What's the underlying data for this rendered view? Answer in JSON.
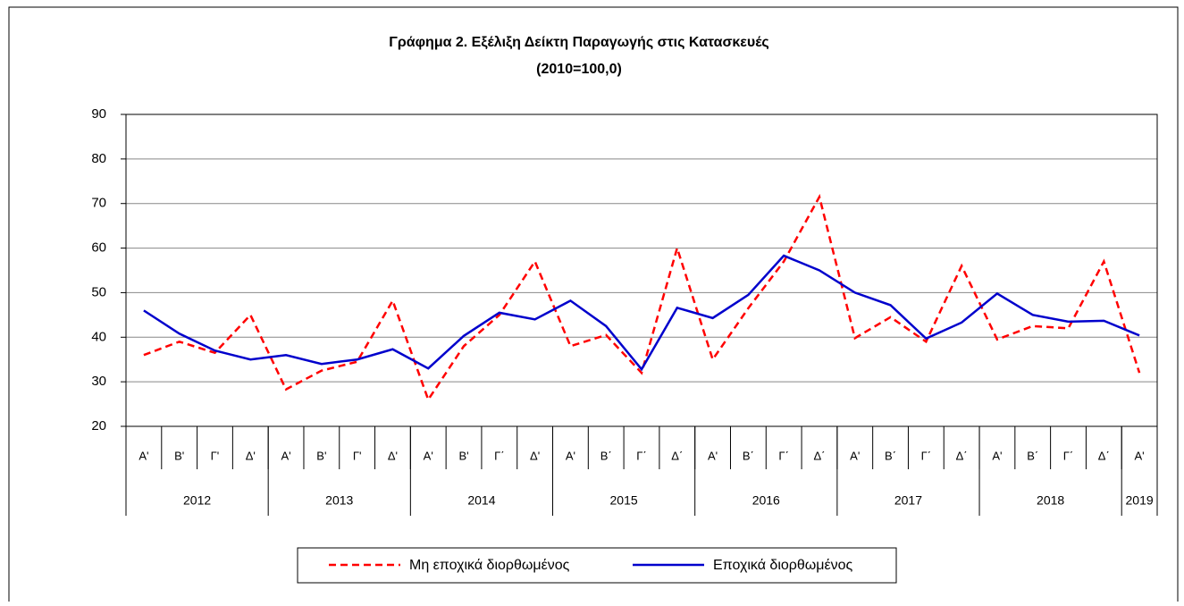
{
  "chart_data": {
    "type": "line",
    "title": "Γράφημα 2. Εξέλιξη Δείκτη Παραγωγής στις Κατασκευές",
    "subtitle": "(2010=100,0)",
    "categories": [
      "Α'",
      "Β'",
      "Γ'",
      "Δ'",
      "Α'",
      "Β'",
      "Γ'",
      "Δ'",
      "Α'",
      "Β'",
      "Γ΄",
      "Δ'",
      "Α'",
      "Β΄",
      "Γ΄",
      "Δ΄",
      "Α'",
      "Β΄",
      "Γ΄",
      "Δ΄",
      "Α'",
      "Β΄",
      "Γ΄",
      "Δ΄",
      "Α'",
      "Β΄",
      "Γ΄",
      "Δ΄",
      "Α'"
    ],
    "category_groups": [
      {
        "label": "2012",
        "span": 4
      },
      {
        "label": "2013",
        "span": 4
      },
      {
        "label": "2014",
        "span": 4
      },
      {
        "label": "2015",
        "span": 4
      },
      {
        "label": "2016",
        "span": 4
      },
      {
        "label": "2017",
        "span": 4
      },
      {
        "label": "2018",
        "span": 4
      },
      {
        "label": "2019",
        "span": 1
      }
    ],
    "series": [
      {
        "name": "Μη εποχικά διορθωμένος",
        "color": "#ff0000",
        "dashed": true,
        "values": [
          36,
          39,
          36.5,
          45,
          28.3,
          32.5,
          34.5,
          48.2,
          26,
          38,
          45,
          57,
          38,
          40.5,
          32,
          60,
          35,
          46.5,
          57,
          71.5,
          39.8,
          44.5,
          39,
          56,
          39.5,
          42.5,
          42,
          57,
          32
        ]
      },
      {
        "name": "Εποχικά διορθωμένος",
        "color": "#0000cc",
        "dashed": false,
        "values": [
          46,
          40.8,
          37,
          35,
          36,
          34,
          35,
          37.3,
          33,
          40.3,
          45.5,
          44,
          48.2,
          42.5,
          32.8,
          46.6,
          44.3,
          49.5,
          58.3,
          55,
          50,
          47.2,
          39.7,
          43.3,
          49.8,
          45,
          43.5,
          43.7,
          40.4
        ]
      }
    ],
    "ylim": [
      20,
      90
    ],
    "yticks": [
      20,
      30,
      40,
      50,
      60,
      70,
      80,
      90
    ],
    "grid": true,
    "legend": "bottom"
  }
}
